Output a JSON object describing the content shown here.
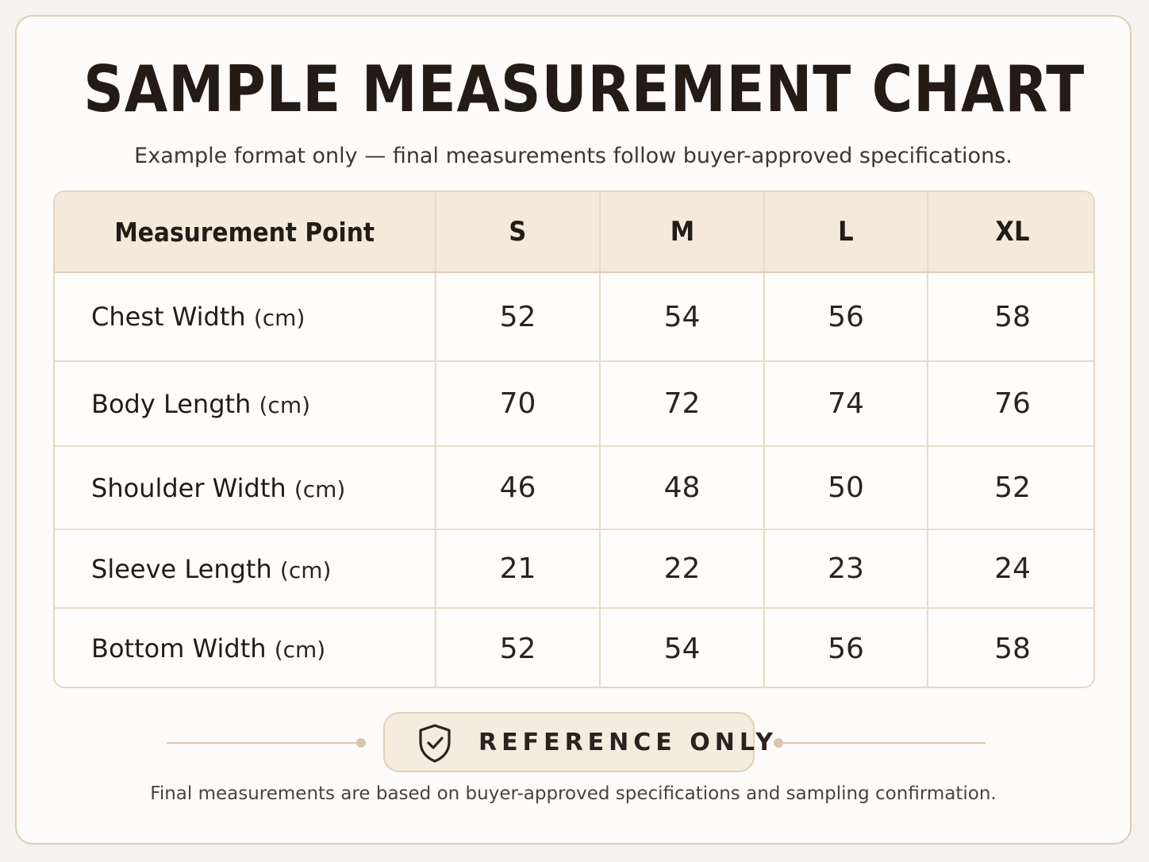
{
  "title": "SAMPLE MEASUREMENT CHART",
  "subtitle": "Example format only — final measurements follow buyer-approved specifications.",
  "table": {
    "headers": [
      "Measurement Point",
      "S",
      "M",
      "L",
      "XL"
    ],
    "rows": [
      {
        "label": "Chest Width",
        "unit": "(cm)",
        "values": [
          "52",
          "54",
          "56",
          "58"
        ]
      },
      {
        "label": "Body Length",
        "unit": "(cm)",
        "values": [
          "70",
          "72",
          "74",
          "76"
        ]
      },
      {
        "label": "Shoulder Width",
        "unit": "(cm)",
        "values": [
          "46",
          "48",
          "50",
          "52"
        ]
      },
      {
        "label": "Sleeve Length",
        "unit": "(cm)",
        "values": [
          "21",
          "22",
          "23",
          "24"
        ]
      },
      {
        "label": "Bottom Width",
        "unit": "(cm)",
        "values": [
          "52",
          "54",
          "56",
          "58"
        ]
      }
    ]
  },
  "badge": {
    "icon": "shield-check-icon",
    "label": "REFERENCE ONLY"
  },
  "footer": "Final measurements are based on buyer-approved specifications and sampling confirmation.",
  "colors": {
    "background": "#fdfcfa",
    "header_fill": "#f4e9db",
    "border": "#e2cfb7",
    "text": "#231c16"
  }
}
